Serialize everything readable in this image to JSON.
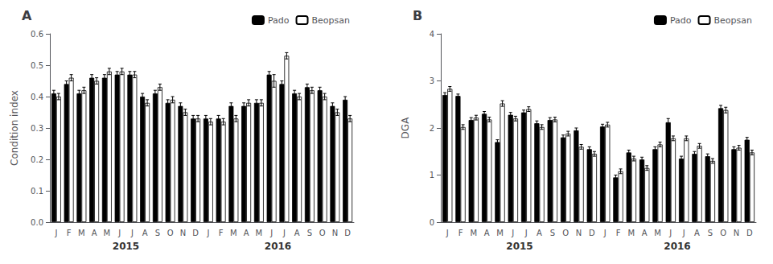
{
  "chart_data": [
    {
      "type": "bar",
      "title": "A",
      "categories": [
        "J",
        "F",
        "M",
        "A",
        "M",
        "J",
        "J",
        "A",
        "S",
        "O",
        "N",
        "D",
        "J",
        "F",
        "M",
        "A",
        "M",
        "J",
        "J",
        "A",
        "S",
        "O",
        "N",
        "D"
      ],
      "series": [
        {
          "name": "Pado",
          "color": "#000000",
          "values": [
            0.41,
            0.44,
            0.41,
            0.46,
            0.46,
            0.47,
            0.47,
            0.4,
            0.41,
            0.38,
            0.37,
            0.33,
            0.33,
            0.33,
            0.37,
            0.37,
            0.38,
            0.47,
            0.44,
            0.41,
            0.43,
            0.42,
            0.37,
            0.39
          ],
          "errors": [
            0.01,
            0.01,
            0.01,
            0.01,
            0.01,
            0.01,
            0.01,
            0.01,
            0.01,
            0.01,
            0.01,
            0.01,
            0.01,
            0.01,
            0.01,
            0.01,
            0.01,
            0.01,
            0.01,
            0.01,
            0.01,
            0.01,
            0.01,
            0.01
          ]
        },
        {
          "name": "Beopsan",
          "color": "#ffffff",
          "values": [
            0.4,
            0.46,
            0.42,
            0.45,
            0.48,
            0.48,
            0.47,
            0.38,
            0.43,
            0.39,
            0.35,
            0.33,
            0.32,
            0.32,
            0.33,
            0.38,
            0.38,
            0.45,
            0.53,
            0.4,
            0.42,
            0.4,
            0.35,
            0.33
          ],
          "errors": [
            0.01,
            0.01,
            0.01,
            0.01,
            0.01,
            0.01,
            0.01,
            0.01,
            0.01,
            0.01,
            0.01,
            0.01,
            0.01,
            0.01,
            0.01,
            0.01,
            0.01,
            0.02,
            0.01,
            0.01,
            0.01,
            0.01,
            0.01,
            0.01
          ]
        }
      ],
      "ylabel": "Condition index",
      "ylim": [
        0.0,
        0.6
      ],
      "yticks": [
        {
          "value": 0,
          "label": "0.0"
        },
        0.1,
        0.2,
        0.3,
        0.4,
        0.5,
        0.6
      ],
      "annotations": [
        {
          "text": "2015",
          "x": 5.5
        },
        {
          "text": "2016",
          "x": 17.5
        }
      ],
      "legend": "upper right",
      "grid": false
    },
    {
      "type": "bar",
      "title": "B",
      "categories": [
        "J",
        "F",
        "M",
        "A",
        "M",
        "J",
        "J",
        "A",
        "S",
        "O",
        "N",
        "D",
        "J",
        "F",
        "M",
        "A",
        "M",
        "J",
        "J",
        "A",
        "S",
        "O",
        "N",
        "D"
      ],
      "series": [
        {
          "name": "Pado",
          "color": "#000000",
          "values": [
            2.7,
            2.68,
            2.17,
            2.3,
            1.7,
            2.28,
            2.33,
            2.1,
            2.17,
            1.8,
            1.95,
            1.55,
            2.03,
            0.95,
            1.48,
            1.33,
            1.55,
            2.12,
            1.35,
            1.45,
            1.4,
            2.42,
            1.55,
            1.75
          ],
          "errors": [
            0.05,
            0.04,
            0.05,
            0.05,
            0.05,
            0.05,
            0.05,
            0.05,
            0.05,
            0.05,
            0.05,
            0.05,
            0.05,
            0.05,
            0.05,
            0.05,
            0.05,
            0.08,
            0.05,
            0.05,
            0.05,
            0.06,
            0.05,
            0.05
          ]
        },
        {
          "name": "Beopsan",
          "color": "#ffffff",
          "values": [
            2.83,
            2.02,
            2.22,
            2.18,
            2.52,
            2.2,
            2.4,
            2.02,
            2.18,
            1.88,
            1.6,
            1.45,
            2.07,
            1.08,
            1.35,
            1.15,
            1.65,
            1.78,
            1.78,
            1.62,
            1.3,
            2.38,
            1.58,
            1.48
          ],
          "errors": [
            0.05,
            0.05,
            0.05,
            0.05,
            0.06,
            0.05,
            0.05,
            0.05,
            0.05,
            0.05,
            0.05,
            0.05,
            0.05,
            0.05,
            0.05,
            0.05,
            0.05,
            0.05,
            0.05,
            0.05,
            0.05,
            0.06,
            0.05,
            0.05
          ]
        }
      ],
      "ylabel": "DGA",
      "ylim": [
        0,
        4
      ],
      "yticks": [
        0,
        1,
        2,
        3,
        4
      ],
      "annotations": [
        {
          "text": "2015",
          "x": 5.5
        },
        {
          "text": "2016",
          "x": 17.5
        }
      ],
      "legend": "upper right",
      "grid": false
    }
  ]
}
